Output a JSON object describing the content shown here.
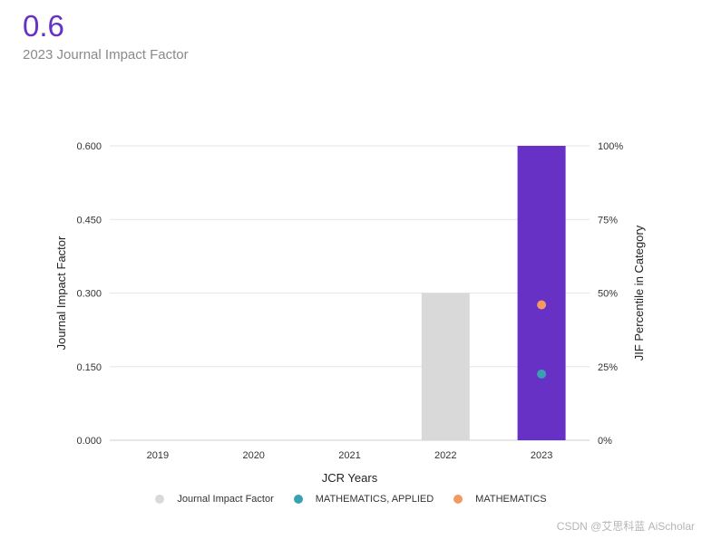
{
  "header": {
    "value": "0.6",
    "subtitle": "2023 Journal Impact Factor"
  },
  "watermark": "CSDN @艾思科蓝 AiScholar",
  "colors": {
    "purple": "#6631c4",
    "gray_bar": "#d9d9d9",
    "teal": "#3aa0b3",
    "orange": "#f39a63"
  },
  "chart_data": {
    "type": "bar",
    "categories": [
      "2019",
      "2020",
      "2021",
      "2022",
      "2023"
    ],
    "series": [
      {
        "name": "Journal Impact Factor",
        "values": [
          null,
          null,
          null,
          0.3,
          0.6
        ]
      }
    ],
    "percentiles": [
      {
        "name": "MATHEMATICS, APPLIED",
        "values": [
          null,
          null,
          null,
          null,
          22.5
        ]
      },
      {
        "name": "MATHEMATICS",
        "values": [
          null,
          null,
          null,
          null,
          46
        ]
      }
    ],
    "xlabel": "JCR Years",
    "ylabel": "Journal Impact Factor",
    "y2label": "JIF Percentile in Category",
    "ylim": [
      0,
      0.6
    ],
    "y2lim": [
      0,
      100
    ],
    "yticks": [
      "0.000",
      "0.150",
      "0.300",
      "0.450",
      "0.600"
    ],
    "y2ticks": [
      "0%",
      "25%",
      "50%",
      "75%",
      "100%"
    ],
    "grid": true,
    "legend": "bottom"
  }
}
